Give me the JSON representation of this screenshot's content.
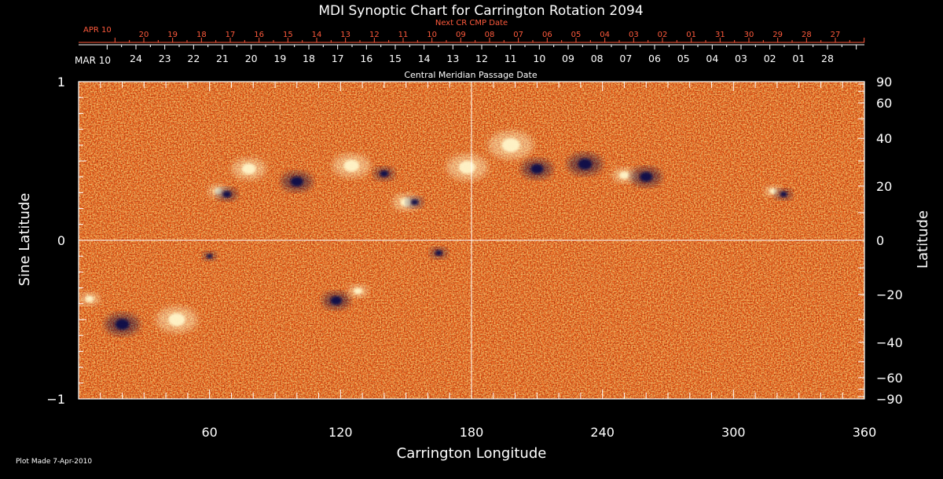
{
  "chart_data": {
    "type": "heatmap",
    "title": "MDI Synoptic Chart for Carrington Rotation 2094",
    "xlabel": "Carrington Longitude",
    "ylabel_left": "Sine Latitude",
    "ylabel_right": "Latitude",
    "xlim": [
      0,
      360
    ],
    "ylim": [
      -1,
      1
    ],
    "x_ticks": [
      60,
      120,
      180,
      240,
      300,
      360
    ],
    "y_ticks_left": [
      {
        "value": 1,
        "label": "1"
      },
      {
        "value": 0,
        "label": "0"
      },
      {
        "value": -1,
        "label": "−1"
      }
    ],
    "y_ticks_right": [
      "90",
      "60",
      "40",
      "20",
      "0",
      "−20",
      "−40",
      "−60",
      "−90"
    ],
    "right_tick_latitudes": [
      90,
      60,
      40,
      20,
      0,
      -20,
      -40,
      -60,
      -90
    ],
    "crosshair": {
      "longitude": 180,
      "sine_latitude": 0
    },
    "colors": {
      "background": "#000000",
      "field_base": "#e85a16",
      "positive_polarity": "#fff4c8",
      "negative_polarity": "#101048",
      "next_cmp_text": "#ff5a3c",
      "axis": "#ffffff"
    },
    "top_axes": {
      "next_cmp": {
        "title": "Next CR CMP Date",
        "start_label": "APR 10",
        "labels": [
          "20",
          "19",
          "18",
          "17",
          "16",
          "15",
          "14",
          "13",
          "12",
          "11",
          "10",
          "09",
          "08",
          "07",
          "06",
          "05",
          "04",
          "03",
          "02",
          "01",
          "31",
          "30",
          "29",
          "28",
          "27"
        ]
      },
      "cmp": {
        "title": "Central Meridian Passage Date",
        "start_label": "MAR 10",
        "labels": [
          "24",
          "23",
          "22",
          "21",
          "20",
          "19",
          "18",
          "17",
          "16",
          "15",
          "14",
          "13",
          "12",
          "11",
          "10",
          "09",
          "08",
          "07",
          "06",
          "05",
          "04",
          "03",
          "02",
          "01",
          "28"
        ]
      }
    },
    "regions": [
      {
        "polarity": "positive",
        "lon": 64,
        "sinlat": 0.31,
        "size": 6
      },
      {
        "polarity": "negative",
        "lon": 68,
        "sinlat": 0.29,
        "size": 6
      },
      {
        "polarity": "positive",
        "lon": 78,
        "sinlat": 0.45,
        "size": 10
      },
      {
        "polarity": "negative",
        "lon": 100,
        "sinlat": 0.37,
        "size": 9
      },
      {
        "polarity": "positive",
        "lon": 125,
        "sinlat": 0.47,
        "size": 11
      },
      {
        "polarity": "negative",
        "lon": 140,
        "sinlat": 0.42,
        "size": 6
      },
      {
        "polarity": "positive",
        "lon": 150,
        "sinlat": 0.24,
        "size": 8
      },
      {
        "polarity": "negative",
        "lon": 154,
        "sinlat": 0.24,
        "size": 5
      },
      {
        "polarity": "positive",
        "lon": 178,
        "sinlat": 0.46,
        "size": 12
      },
      {
        "polarity": "positive",
        "lon": 198,
        "sinlat": 0.6,
        "size": 13
      },
      {
        "polarity": "negative",
        "lon": 210,
        "sinlat": 0.45,
        "size": 9
      },
      {
        "polarity": "negative",
        "lon": 232,
        "sinlat": 0.48,
        "size": 10
      },
      {
        "polarity": "positive",
        "lon": 250,
        "sinlat": 0.41,
        "size": 7
      },
      {
        "polarity": "negative",
        "lon": 260,
        "sinlat": 0.4,
        "size": 9
      },
      {
        "polarity": "positive",
        "lon": 318,
        "sinlat": 0.31,
        "size": 5
      },
      {
        "polarity": "negative",
        "lon": 323,
        "sinlat": 0.29,
        "size": 5
      },
      {
        "polarity": "positive",
        "lon": 5,
        "sinlat": -0.37,
        "size": 6
      },
      {
        "polarity": "negative",
        "lon": 20,
        "sinlat": -0.53,
        "size": 10
      },
      {
        "polarity": "positive",
        "lon": 45,
        "sinlat": -0.5,
        "size": 12
      },
      {
        "polarity": "negative",
        "lon": 118,
        "sinlat": -0.38,
        "size": 8
      },
      {
        "polarity": "positive",
        "lon": 128,
        "sinlat": -0.32,
        "size": 6
      },
      {
        "polarity": "negative",
        "lon": 165,
        "sinlat": -0.08,
        "size": 5
      },
      {
        "polarity": "negative",
        "lon": 60,
        "sinlat": -0.1,
        "size": 4
      }
    ]
  },
  "footer": {
    "plot_made": "Plot Made  7-Apr-2010"
  }
}
